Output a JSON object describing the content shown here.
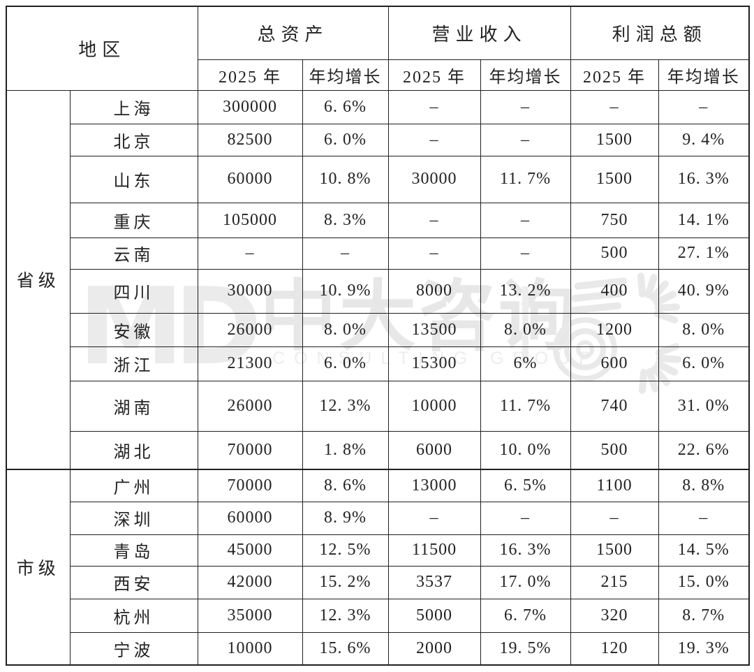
{
  "colors": {
    "text": "#222222",
    "border": "#202020",
    "watermark_gray": "#e7e7e7"
  },
  "table": {
    "corner_label": "地区",
    "column_groups": [
      {
        "label": "总资产",
        "sub": [
          "2025 年",
          "年均增长"
        ]
      },
      {
        "label": "营业收入",
        "sub": [
          "2025 年",
          "年均增长"
        ]
      },
      {
        "label": "利润总额",
        "sub": [
          "2025 年",
          "年均增长"
        ]
      }
    ],
    "sections": [
      {
        "label": "省级",
        "rows": [
          {
            "region": "上海",
            "cells": [
              "300000",
              "6. 6%",
              "–",
              "–",
              "–",
              "–"
            ]
          },
          {
            "region": "北京",
            "cells": [
              "82500",
              "6. 0%",
              "–",
              "–",
              "1500",
              "9. 4%"
            ]
          },
          {
            "region": "山东",
            "cells": [
              "60000",
              "10. 8%",
              "30000",
              "11. 7%",
              "1500",
              "16. 3%"
            ]
          },
          {
            "region": "重庆",
            "cells": [
              "105000",
              "8. 3%",
              "–",
              "–",
              "750",
              "14. 1%"
            ]
          },
          {
            "region": "云南",
            "cells": [
              "–",
              "–",
              "–",
              "–",
              "500",
              "27. 1%"
            ]
          },
          {
            "region": "四川",
            "cells": [
              "30000",
              "10. 9%",
              "8000",
              "13. 2%",
              "400",
              "40. 9%"
            ]
          },
          {
            "region": "安徽",
            "cells": [
              "26000",
              "8. 0%",
              "13500",
              "8. 0%",
              "1200",
              "8. 0%"
            ]
          },
          {
            "region": "浙江",
            "cells": [
              "21300",
              "6. 0%",
              "15300",
              "6%",
              "600",
              "6. 0%"
            ]
          },
          {
            "region": "湖南",
            "cells": [
              "26000",
              "12. 3%",
              "10000",
              "11. 7%",
              "740",
              "31. 0%"
            ]
          },
          {
            "region": "湖北",
            "cells": [
              "70000",
              "1. 8%",
              "6000",
              "10. 0%",
              "500",
              "22. 6%"
            ]
          }
        ]
      },
      {
        "label": "市级",
        "rows": [
          {
            "region": "广州",
            "cells": [
              "70000",
              "8. 6%",
              "13000",
              "6. 5%",
              "1100",
              "8. 8%"
            ]
          },
          {
            "region": "深圳",
            "cells": [
              "60000",
              "8. 9%",
              "–",
              "–",
              "–",
              "–"
            ]
          },
          {
            "region": "青岛",
            "cells": [
              "45000",
              "12. 5%",
              "11500",
              "16. 3%",
              "1500",
              "14. 5%"
            ]
          },
          {
            "region": "西安",
            "cells": [
              "42000",
              "15. 2%",
              "3537",
              "17. 0%",
              "215",
              "15. 0%"
            ]
          },
          {
            "region": "杭州",
            "cells": [
              "35000",
              "12. 3%",
              "5000",
              "6. 7%",
              "320",
              "8. 7%"
            ]
          },
          {
            "region": "宁波",
            "cells": [
              "10000",
              "15. 6%",
              "2000",
              "19. 5%",
              "120",
              "19. 3%"
            ]
          }
        ]
      }
    ]
  },
  "watermark": {
    "monogram": "MD",
    "brand_cn": "中大咨询",
    "brand_en": "CONSULTING GROUP"
  }
}
